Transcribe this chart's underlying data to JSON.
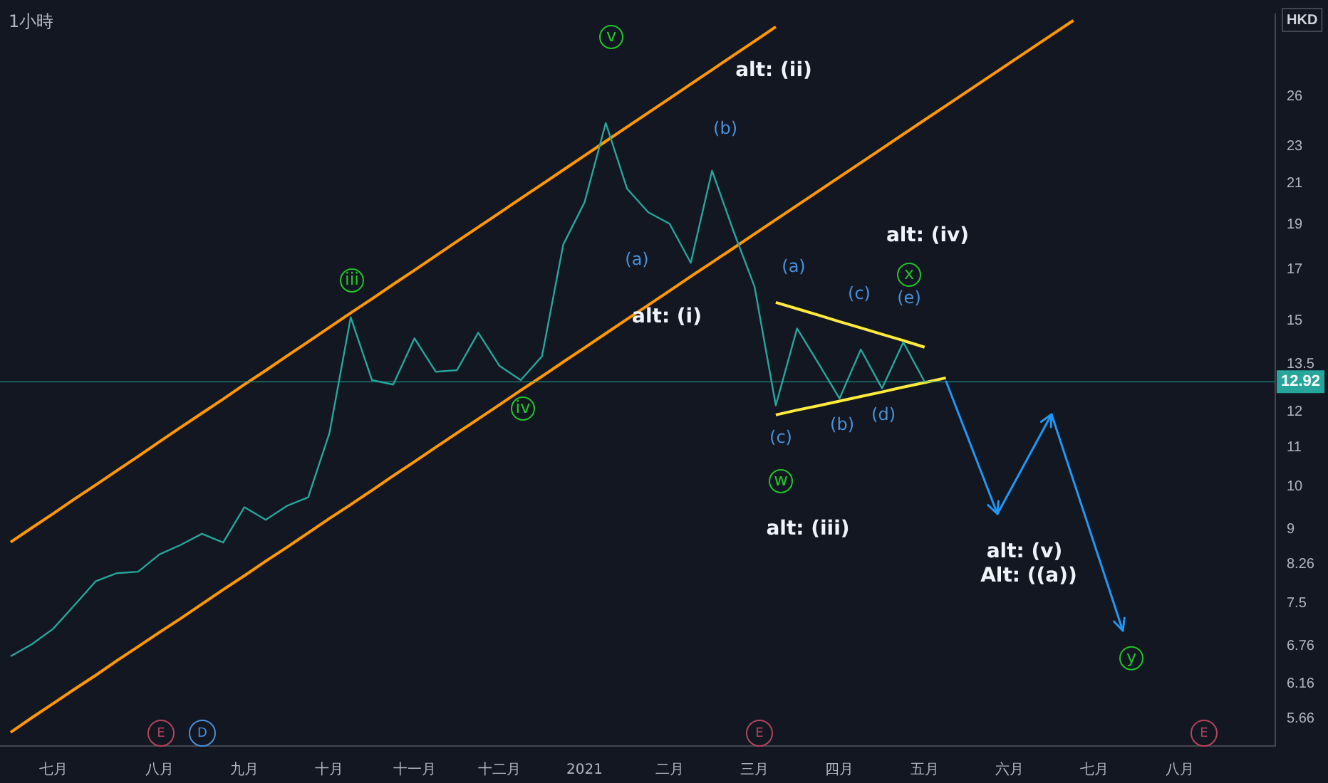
{
  "chart_data": {
    "type": "line",
    "title": "1小時",
    "ylabel": "HKD",
    "log": true,
    "grid": false,
    "legend": false,
    "marker": "none",
    "line_style": "solid",
    "categories": [
      null,
      null,
      "七月",
      null,
      null,
      null,
      null,
      "八月",
      null,
      null,
      null,
      "九月",
      null,
      null,
      null,
      "十月",
      null,
      null,
      null,
      "十一月",
      null,
      null,
      null,
      "十二月",
      null,
      null,
      null,
      "2021",
      null,
      null,
      null,
      "二月",
      null,
      null,
      null,
      "三月",
      null,
      null,
      null,
      "四月",
      null,
      null,
      null,
      "五月",
      null,
      null,
      null,
      "六月",
      null,
      null,
      null,
      "七月",
      null,
      null,
      null,
      "八月",
      null,
      null,
      null,
      null
    ],
    "ylim": [
      5.29,
      31.8
    ],
    "yticks": [
      5.66,
      6.16,
      6.76,
      7.5,
      8.26,
      9,
      10,
      11,
      12,
      13.5,
      15,
      17,
      19,
      21,
      23,
      26
    ],
    "series": [
      {
        "color": "#26a69a",
        "values": [
          6.59,
          6.79,
          7.05,
          7.47,
          7.92,
          8.08,
          8.11,
          8.46,
          8.66,
          8.9,
          8.71,
          9.5,
          9.21,
          9.53,
          9.73,
          11.39,
          15.13,
          12.97,
          12.83,
          14.37,
          13.24,
          13.29,
          14.57,
          13.43,
          12.97,
          13.75,
          18.08,
          20.05,
          24.36,
          20.74,
          19.57,
          19.03,
          17.29,
          21.67,
          18.71,
          16.31,
          12.19,
          14.72,
          13.52,
          12.4,
          13.98,
          12.71,
          14.23,
          12.92,
          null,
          null,
          null,
          null,
          null,
          null,
          null,
          null,
          null,
          null,
          null,
          null,
          null,
          null,
          null,
          null
        ]
      },
      {
        "color": "#ff9800",
        "values": [
          8.72,
          9.03,
          9.35,
          9.69,
          10.03,
          10.39,
          10.76,
          11.15,
          11.55,
          11.96,
          12.38,
          12.83,
          13.28,
          13.76,
          14.25,
          14.76,
          15.29,
          15.83,
          16.4,
          16.98,
          17.59,
          18.22,
          18.87,
          19.54,
          20.24,
          20.96,
          21.71,
          22.49,
          23.29,
          24.12,
          24.98,
          25.87,
          26.8,
          27.75,
          28.75,
          29.77,
          30.84,
          null,
          null,
          null,
          null,
          null,
          null,
          null,
          null,
          null,
          null,
          null,
          null,
          null,
          null,
          null,
          null,
          null,
          null,
          null,
          null,
          null,
          null,
          null
        ]
      },
      {
        "color": "#ff9800",
        "values": [
          5.47,
          5.67,
          5.87,
          6.08,
          6.29,
          6.52,
          6.75,
          6.99,
          7.23,
          7.49,
          7.76,
          8.03,
          8.32,
          8.61,
          8.92,
          9.24,
          9.56,
          9.9,
          10.26,
          10.62,
          11.0,
          11.39,
          11.79,
          12.21,
          12.65,
          13.09,
          13.56,
          14.04,
          14.54,
          15.06,
          15.59,
          16.14,
          16.72,
          17.31,
          17.92,
          18.56,
          19.22,
          19.9,
          20.61,
          21.34,
          22.1,
          22.88,
          23.7,
          24.54,
          25.41,
          26.31,
          27.24,
          28.21,
          29.21,
          30.25,
          31.32,
          null,
          null,
          null,
          null,
          null,
          null,
          null,
          null,
          null
        ]
      },
      {
        "color": "#ffeb3b",
        "values": [
          null,
          null,
          null,
          null,
          null,
          null,
          null,
          null,
          null,
          null,
          null,
          null,
          null,
          null,
          null,
          null,
          null,
          null,
          null,
          null,
          null,
          null,
          null,
          null,
          null,
          null,
          null,
          null,
          null,
          null,
          null,
          null,
          null,
          null,
          null,
          null,
          15.69,
          15.45,
          15.21,
          14.97,
          14.74,
          14.51,
          14.29,
          14.06,
          null,
          null,
          null,
          null,
          null,
          null,
          null,
          null,
          null,
          null,
          null,
          null,
          null,
          null,
          null,
          null
        ]
      },
      {
        "color": "#ffeb3b",
        "values": [
          null,
          null,
          null,
          null,
          null,
          null,
          null,
          null,
          null,
          null,
          null,
          null,
          null,
          null,
          null,
          null,
          null,
          null,
          null,
          null,
          null,
          null,
          null,
          null,
          null,
          null,
          null,
          null,
          null,
          null,
          null,
          null,
          null,
          null,
          null,
          null,
          11.91,
          12.05,
          12.18,
          12.32,
          12.46,
          12.6,
          12.75,
          12.89,
          13.04,
          null,
          null,
          null,
          null,
          null,
          null,
          null,
          null,
          null,
          null,
          null,
          null,
          null,
          null,
          null
        ]
      }
    ],
    "ref_lines": [
      {
        "axis": "y",
        "value": 12.92,
        "label": "12.92",
        "color": "#26a69a"
      }
    ],
    "annotations": [
      "v",
      "iii",
      "iv",
      "alt: (ii)",
      "(b)",
      "(a)",
      "alt: (i)",
      "(a)",
      "(c)",
      "alt: (iv)",
      "x",
      "(e)",
      "(c)",
      "w",
      "(b)",
      "(d)",
      "alt: (iii)",
      "alt: (v)",
      "Alt: ((a))",
      {
        "text": "y",
        "y": 6.56
      },
      "E",
      "D",
      "E",
      "E"
    ]
  }
}
